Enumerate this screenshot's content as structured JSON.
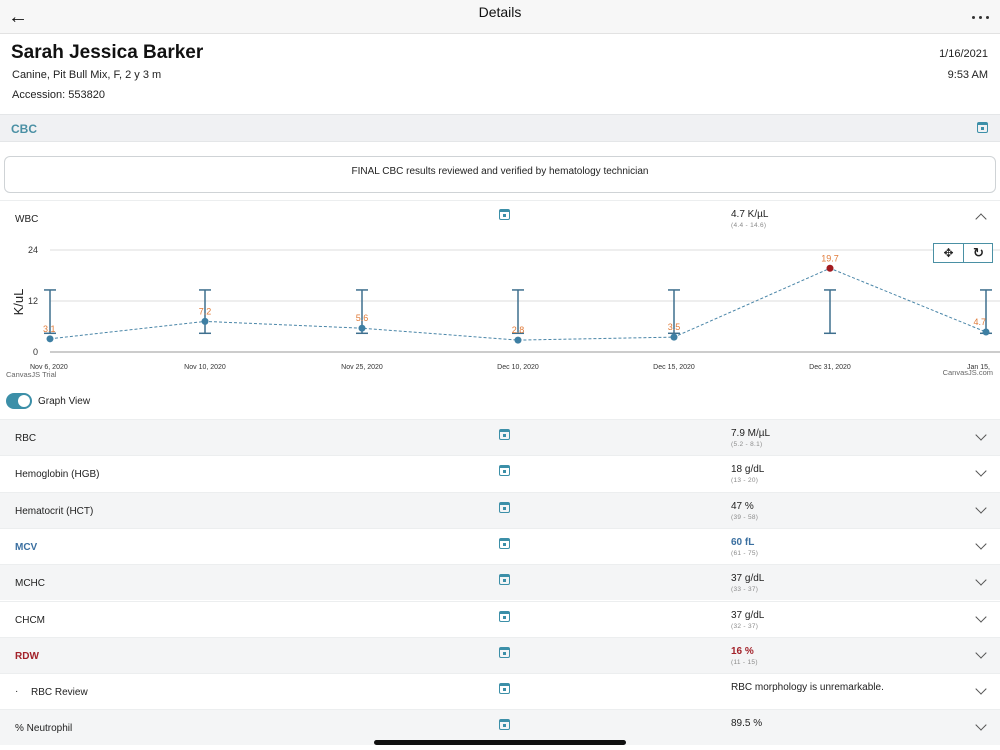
{
  "navbar": {
    "title": "Details"
  },
  "patient": {
    "name": "Sarah Jessica Barker",
    "species": "Canine, Pit Bull Mix, F, 2 y 3 m",
    "accession": "Accession: 553820",
    "date": "1/16/2021",
    "time": "9:53 AM"
  },
  "section": {
    "title": "CBC"
  },
  "note": "FINAL CBC results reviewed and verified by hematology technician",
  "wbc": {
    "label": "WBC",
    "value": "4.7 K/µL",
    "range": "(4.4  -  14.6)"
  },
  "toggle": {
    "label": "Graph View",
    "on": true
  },
  "chart_data": {
    "type": "line",
    "title": "",
    "ylabel": "K/uL",
    "ylim": [
      0,
      24
    ],
    "yticks": [
      "0",
      "12",
      "24"
    ],
    "x": [
      "Nov 6, 2020",
      "Nov 10, 2020",
      "Nov 25, 2020",
      "Dec 10, 2020",
      "Dec 15, 2020",
      "Dec 31, 2020",
      "Jan 15,"
    ],
    "series": [
      {
        "values": [
          3.1,
          7.2,
          5.6,
          2.8,
          3.5,
          19.7,
          4.7
        ],
        "labels": [
          "3.1",
          "7.2",
          "5.6",
          "2.8",
          "3.5",
          "19.7",
          "4.7"
        ]
      }
    ],
    "reference_range": [
      4.4,
      14.6
    ],
    "high_point_index": 5,
    "colors": {
      "line": "#4a86a8",
      "point": "#3e7fa3",
      "high_point": "#a31a1f",
      "label": "#e07b39",
      "range": "#3e6f8e"
    },
    "watermark_left": "CanvasJS Trial",
    "watermark_right": "CanvasJS.com",
    "grid": true
  },
  "rows": [
    {
      "label": "RBC",
      "value": "7.9 M/µL",
      "range": "(5.2  -  8.1)",
      "status": "normal"
    },
    {
      "label": "Hemoglobin (HGB)",
      "value": "18 g/dL",
      "range": "(13  -  20)",
      "status": "normal"
    },
    {
      "label": "Hematocrit (HCT)",
      "value": "47 %",
      "range": "(39  -  58)",
      "status": "normal"
    },
    {
      "label": "MCV",
      "value": "60 fL",
      "range": "(61  -  75)",
      "status": "low"
    },
    {
      "label": "MCHC",
      "value": "37 g/dL",
      "range": "(33  -  37)",
      "status": "normal"
    },
    {
      "label": "CHCM",
      "value": "37 g/dL",
      "range": "(32  -  37)",
      "status": "normal"
    },
    {
      "label": "RDW",
      "value": "16 %",
      "range": "(11  -  15)",
      "status": "high"
    },
    {
      "label": "RBC Review",
      "value": "RBC morphology is unremarkable.",
      "range": "",
      "status": "sub"
    },
    {
      "label": "% Neutrophil",
      "value": "89.5 %",
      "range": "",
      "status": "normal"
    }
  ],
  "status_colors": {
    "normal": "#222222",
    "low": "#3a6fa0",
    "high": "#a3222a",
    "sub": "#222222"
  }
}
